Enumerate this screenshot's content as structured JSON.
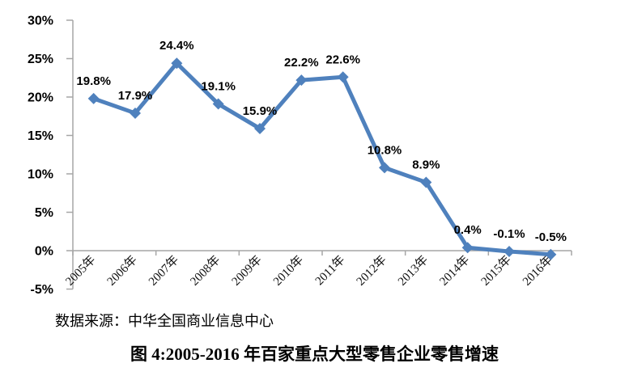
{
  "chart_data": {
    "type": "line",
    "categories": [
      "2005年",
      "2006年",
      "2007年",
      "2008年",
      "2009年",
      "2010年",
      "2011年",
      "2012年",
      "2013年",
      "2014年",
      "2015年",
      "2016年"
    ],
    "series": [
      {
        "name": "百家重点大型零售企业零售增速",
        "values": [
          19.8,
          17.9,
          24.4,
          19.1,
          15.9,
          22.2,
          22.6,
          10.8,
          8.9,
          0.4,
          -0.1,
          -0.5
        ]
      }
    ],
    "data_labels": [
      "19.8%",
      "17.9%",
      "24.4%",
      "19.1%",
      "15.9%",
      "22.2%",
      "22.6%",
      "10.8%",
      "8.9%",
      "0.4%",
      "-0.1%",
      "-0.5%"
    ],
    "ytick_values": [
      30,
      25,
      20,
      15,
      10,
      5,
      0,
      -5
    ],
    "ytick_labels": [
      "30%",
      "25%",
      "20%",
      "15%",
      "10%",
      "5%",
      "0%",
      "-5%"
    ],
    "ylim": [
      -5,
      30
    ],
    "grid": false,
    "legend": "none",
    "line_color": "#4F81BD",
    "marker": "diamond",
    "axis_color": "#A6A6A6"
  },
  "source_note": "数据来源：中华全国商业信息中心",
  "caption": "图 4:2005-2016 年百家重点大型零售企业零售增速"
}
